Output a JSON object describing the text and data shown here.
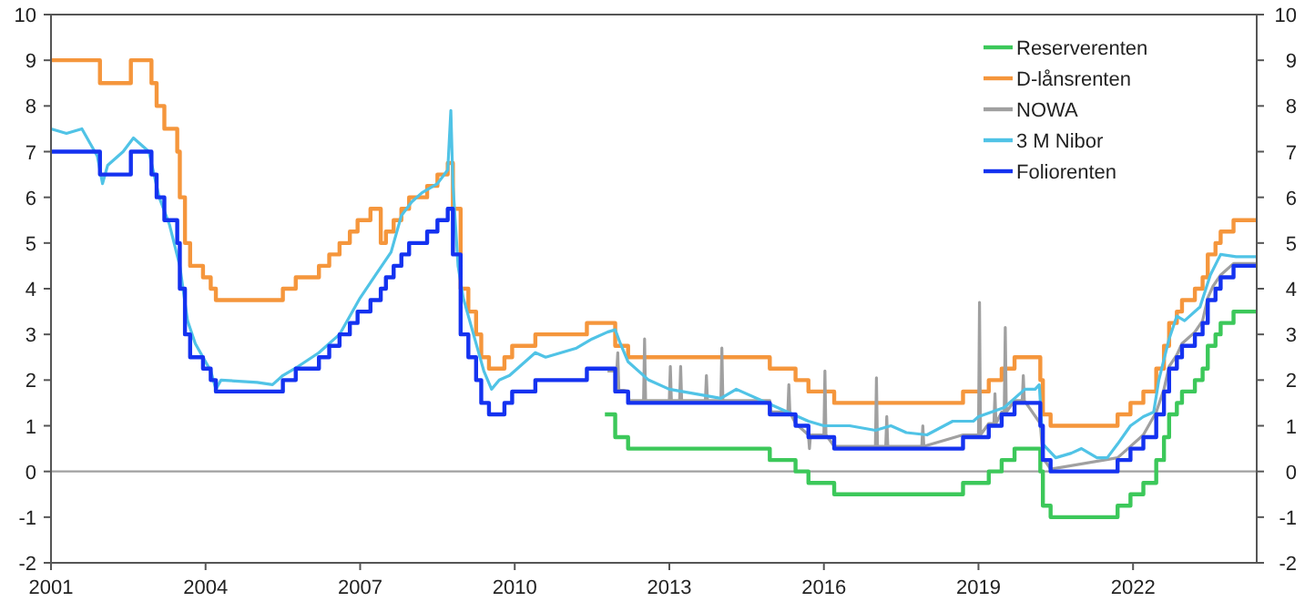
{
  "chart_data": {
    "type": "step",
    "xlim": [
      2001,
      2024.4
    ],
    "xticks": [
      2001,
      2004,
      2007,
      2010,
      2013,
      2016,
      2019,
      2022
    ],
    "ylim": [
      -2,
      10
    ],
    "yticks": [
      -2,
      -1,
      0,
      1,
      2,
      3,
      4,
      5,
      6,
      7,
      8,
      9,
      10
    ],
    "y2lim": [
      -2,
      10
    ],
    "y2ticks": [
      -2,
      -1,
      0,
      1,
      2,
      3,
      4,
      5,
      6,
      7,
      8,
      9,
      10
    ],
    "grid": false,
    "legend": "top right",
    "ref_lines": [
      {
        "axis": "y",
        "value": 0,
        "color": "#a0a0a0"
      }
    ],
    "series": [
      {
        "name": "Reserverenten",
        "color": "#3cc85a",
        "x": [
          2011.75,
          2011.95,
          2012.2,
          2014.95,
          2015.45,
          2015.7,
          2016.2,
          2018.7,
          2019.2,
          2019.45,
          2019.7,
          2020.2,
          2020.25,
          2020.4,
          2021.7,
          2021.95,
          2022.2,
          2022.45,
          2022.6,
          2022.7,
          2022.85,
          2022.95,
          2023.2,
          2023.35,
          2023.45,
          2023.6,
          2023.7,
          2023.95,
          2024.4
        ],
        "values": [
          1.25,
          0.75,
          0.5,
          0.25,
          0,
          -0.25,
          -0.5,
          -0.25,
          0,
          0.25,
          0.5,
          0,
          -0.75,
          -1,
          -0.75,
          -0.5,
          -0.25,
          0.25,
          0.75,
          1.25,
          1.5,
          1.75,
          2,
          2.25,
          2.75,
          3,
          3.25,
          3.5,
          3.5
        ]
      },
      {
        "name": "D-lånsrenten",
        "color": "#f5963c",
        "x": [
          2001,
          2001.95,
          2002.55,
          2002.95,
          2003.05,
          2003.2,
          2003.45,
          2003.5,
          2003.6,
          2003.7,
          2003.95,
          2004.1,
          2004.2,
          2005.5,
          2005.75,
          2006.2,
          2006.4,
          2006.6,
          2006.8,
          2006.95,
          2007.2,
          2007.4,
          2007.5,
          2007.65,
          2007.8,
          2007.95,
          2008.3,
          2008.5,
          2008.7,
          2008.8,
          2008.95,
          2009.1,
          2009.25,
          2009.35,
          2009.5,
          2009.8,
          2009.95,
          2010.4,
          2011.4,
          2011.95,
          2012.2,
          2014.95,
          2015.45,
          2015.7,
          2016.2,
          2018.7,
          2019.2,
          2019.45,
          2019.7,
          2020.2,
          2020.25,
          2020.4,
          2021.7,
          2021.95,
          2022.2,
          2022.45,
          2022.6,
          2022.7,
          2022.85,
          2022.95,
          2023.2,
          2023.35,
          2023.45,
          2023.6,
          2023.7,
          2023.95,
          2024.4
        ],
        "values": [
          9,
          8.5,
          9,
          8.5,
          8,
          7.5,
          7,
          6,
          5,
          4.5,
          4.25,
          4,
          3.75,
          4,
          4.25,
          4.5,
          4.75,
          5,
          5.25,
          5.5,
          5.75,
          5,
          5.25,
          5.5,
          5.75,
          6,
          6.25,
          6.5,
          6.75,
          5.75,
          4,
          3.5,
          3,
          2.5,
          2.25,
          2.5,
          2.75,
          3,
          3.25,
          2.75,
          2.5,
          2.25,
          2,
          1.75,
          1.5,
          1.75,
          2,
          2.25,
          2.5,
          2,
          1.25,
          1,
          1.25,
          1.5,
          1.75,
          2.25,
          2.75,
          3.25,
          3.5,
          3.75,
          4,
          4.25,
          4.75,
          5,
          5.25,
          5.5,
          5.5
        ]
      },
      {
        "name": "NOWA",
        "type": "line",
        "color": "#a0a0a0",
        "x": [
          2011.8,
          2011.95,
          2011.96,
          2012.0,
          2012.02,
          2012.2,
          2012.22,
          2012.5,
          2012.52,
          2012.54,
          2013.0,
          2013.02,
          2013.04,
          2013.2,
          2013.22,
          2013.24,
          2013.7,
          2013.72,
          2013.74,
          2014.0,
          2014.02,
          2014.04,
          2014.95,
          2014.97,
          2015.3,
          2015.32,
          2015.34,
          2015.45,
          2015.7,
          2015.72,
          2015.74,
          2016.0,
          2016.02,
          2016.04,
          2016.2,
          2017.0,
          2017.02,
          2017.04,
          2017.2,
          2017.22,
          2017.24,
          2017.9,
          2017.92,
          2017.94,
          2018.7,
          2019.0,
          2019.02,
          2019.04,
          2019.2,
          2019.3,
          2019.32,
          2019.34,
          2019.45,
          2019.5,
          2019.52,
          2019.54,
          2019.7,
          2019.85,
          2019.87,
          2019.89,
          2020.2,
          2020.25,
          2020.4,
          2021.7,
          2021.95,
          2022.2,
          2022.45,
          2022.6,
          2022.7,
          2022.85,
          2022.95,
          2023.2,
          2023.35,
          2023.45,
          2023.55,
          2023.7,
          2023.95,
          2024.4
        ],
        "values": [
          2.2,
          2.2,
          1.8,
          2.6,
          1.8,
          1.75,
          1.55,
          1.55,
          2.9,
          1.55,
          1.55,
          2.3,
          1.55,
          1.55,
          2.3,
          1.55,
          1.55,
          2.1,
          1.55,
          1.55,
          2.7,
          1.55,
          1.55,
          1.3,
          1.3,
          1.9,
          1.3,
          1.05,
          0.8,
          0.5,
          0.8,
          0.8,
          2.2,
          0.8,
          0.55,
          0.55,
          2.05,
          0.55,
          0.55,
          1.2,
          0.55,
          0.55,
          1.0,
          0.55,
          0.8,
          0.8,
          3.7,
          0.8,
          1.05,
          1.05,
          1.7,
          1.05,
          1.3,
          1.3,
          3.15,
          1.3,
          1.55,
          1.55,
          2.1,
          1.55,
          1.05,
          0.3,
          0.05,
          0.3,
          0.55,
          0.8,
          1.3,
          1.8,
          2.3,
          2.55,
          2.8,
          3.05,
          3.3,
          3.8,
          4.05,
          4.3,
          4.55,
          4.55
        ]
      },
      {
        "name": "3 M Nibor",
        "type": "line",
        "color": "#50c3e6",
        "x": [
          2001,
          2001.3,
          2001.6,
          2001.9,
          2002.0,
          2002.1,
          2002.4,
          2002.6,
          2002.9,
          2003.1,
          2003.3,
          2003.5,
          2003.65,
          2003.8,
          2003.95,
          2004.1,
          2004.2,
          2004.3,
          2005.0,
          2005.3,
          2005.5,
          2005.8,
          2006.2,
          2006.6,
          2007.0,
          2007.3,
          2007.6,
          2007.8,
          2008.0,
          2008.2,
          2008.5,
          2008.7,
          2008.76,
          2008.8,
          2008.9,
          2009.0,
          2009.2,
          2009.4,
          2009.55,
          2009.7,
          2009.9,
          2010.1,
          2010.4,
          2010.6,
          2010.9,
          2011.2,
          2011.5,
          2011.8,
          2011.95,
          2012.05,
          2012.2,
          2012.6,
          2013.0,
          2013.5,
          2014.0,
          2014.3,
          2014.9,
          2015.3,
          2015.7,
          2016.0,
          2016.5,
          2017.0,
          2017.3,
          2017.6,
          2018.0,
          2018.5,
          2018.9,
          2019.0,
          2019.5,
          2019.9,
          2020.1,
          2020.18,
          2020.25,
          2020.5,
          2020.8,
          2021.0,
          2021.3,
          2021.5,
          2021.7,
          2021.95,
          2022.2,
          2022.4,
          2022.5,
          2022.7,
          2022.85,
          2023.0,
          2023.3,
          2023.5,
          2023.7,
          2024.0,
          2024.4
        ],
        "values": [
          7.5,
          7.4,
          7.5,
          6.9,
          6.3,
          6.7,
          7.0,
          7.3,
          7.0,
          6.0,
          5.4,
          4.5,
          3.3,
          2.8,
          2.5,
          2.2,
          1.8,
          2.0,
          1.95,
          1.9,
          2.1,
          2.3,
          2.6,
          3.0,
          3.8,
          4.3,
          4.8,
          5.6,
          5.9,
          6.1,
          6.3,
          6.6,
          7.9,
          6.3,
          4.5,
          3.8,
          3.0,
          2.2,
          1.8,
          2.0,
          2.1,
          2.3,
          2.6,
          2.5,
          2.6,
          2.7,
          2.9,
          3.05,
          3.1,
          2.8,
          2.4,
          2.0,
          1.8,
          1.7,
          1.6,
          1.8,
          1.5,
          1.3,
          1.1,
          1.0,
          1.0,
          0.9,
          1.0,
          0.85,
          0.8,
          1.1,
          1.1,
          1.2,
          1.4,
          1.8,
          1.8,
          1.9,
          0.6,
          0.3,
          0.4,
          0.5,
          0.3,
          0.3,
          0.6,
          1.0,
          1.2,
          1.3,
          2.0,
          2.9,
          3.4,
          3.3,
          3.6,
          4.3,
          4.75,
          4.7,
          4.7
        ]
      },
      {
        "name": "Foliorenten",
        "color": "#1432f0",
        "x": [
          2001,
          2001.95,
          2002.55,
          2002.95,
          2003.05,
          2003.2,
          2003.45,
          2003.5,
          2003.6,
          2003.7,
          2003.95,
          2004.1,
          2004.2,
          2005.5,
          2005.75,
          2006.2,
          2006.4,
          2006.6,
          2006.8,
          2006.95,
          2007.2,
          2007.4,
          2007.5,
          2007.65,
          2007.8,
          2007.95,
          2008.3,
          2008.5,
          2008.7,
          2008.8,
          2008.95,
          2009.1,
          2009.25,
          2009.35,
          2009.5,
          2009.8,
          2009.95,
          2010.4,
          2011.4,
          2011.95,
          2012.2,
          2014.95,
          2015.45,
          2015.7,
          2016.2,
          2018.7,
          2019.2,
          2019.45,
          2019.7,
          2020.2,
          2020.25,
          2020.4,
          2021.7,
          2021.95,
          2022.2,
          2022.45,
          2022.6,
          2022.7,
          2022.85,
          2022.95,
          2023.2,
          2023.35,
          2023.45,
          2023.6,
          2023.7,
          2023.95,
          2024.4
        ],
        "values": [
          7,
          6.5,
          7,
          6.5,
          6,
          5.5,
          5,
          4,
          3,
          2.5,
          2.25,
          2,
          1.75,
          2,
          2.25,
          2.5,
          2.75,
          3,
          3.25,
          3.5,
          3.75,
          4,
          4.25,
          4.5,
          4.75,
          5,
          5.25,
          5.5,
          5.75,
          4.75,
          3,
          2.5,
          2,
          1.5,
          1.25,
          1.5,
          1.75,
          2,
          2.25,
          1.75,
          1.5,
          1.25,
          1,
          0.75,
          0.5,
          0.75,
          1,
          1.25,
          1.5,
          1,
          0.25,
          0,
          0.25,
          0.5,
          0.75,
          1.25,
          1.75,
          2.25,
          2.5,
          2.75,
          3,
          3.25,
          3.75,
          4,
          4.25,
          4.5,
          4.5
        ]
      }
    ]
  }
}
